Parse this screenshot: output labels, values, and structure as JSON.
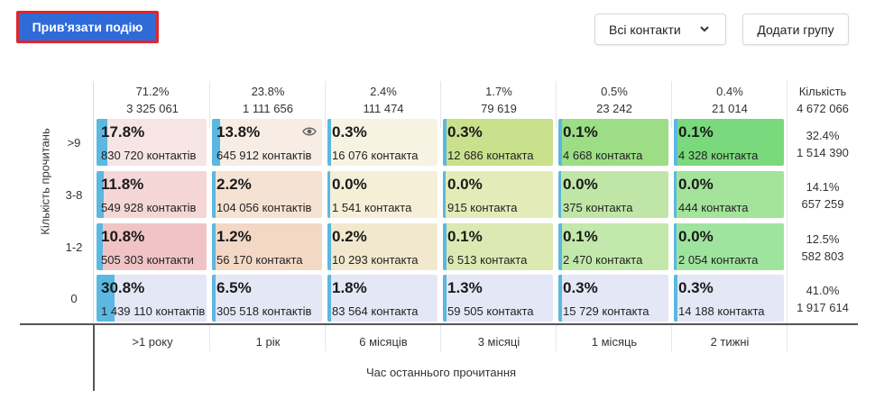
{
  "toolbar": {
    "bind_event_label": "Прив'язати подію",
    "contacts_filter_label": "Всі контакти",
    "add_group_label": "Додати групу"
  },
  "columns": [
    {
      "percent": "71.2%",
      "count": "3 325 061",
      "label": ">1 року"
    },
    {
      "percent": "23.8%",
      "count": "1 111 656",
      "label": "1 рік"
    },
    {
      "percent": "2.4%",
      "count": "111 474",
      "label": "6 місяців"
    },
    {
      "percent": "1.7%",
      "count": "79 619",
      "label": "3 місяці"
    },
    {
      "percent": "0.5%",
      "count": "23 242",
      "label": "1 місяць"
    },
    {
      "percent": "0.4%",
      "count": "21 014",
      "label": "2 тижні"
    }
  ],
  "totals_header": {
    "label": "Кількість",
    "count": "4 672 066"
  },
  "y_axis_title": "Кількість прочитань",
  "x_axis_title": "Час останнього прочитання",
  "rows": [
    {
      "label": ">9",
      "total_percent": "32.4%",
      "total_count": "1 514 390",
      "cells": [
        {
          "percent": "17.8%",
          "contacts": "830 720 контактів",
          "bar": 0.178,
          "color": "#f7e4e4"
        },
        {
          "percent": "13.8%",
          "contacts": "645 912 контактів",
          "bar": 0.138,
          "color": "#f8ede4",
          "eye_icon": "eye-icon"
        },
        {
          "percent": "0.3%",
          "contacts": "16 076 контакта",
          "bar": 0.003,
          "color": "#f7f3e2"
        },
        {
          "percent": "0.3%",
          "contacts": "12 686 контакта",
          "bar": 0.003,
          "color": "#c9e08c"
        },
        {
          "percent": "0.1%",
          "contacts": "4 668 контакта",
          "bar": 0.001,
          "color": "#9ddd86"
        },
        {
          "percent": "0.1%",
          "contacts": "4 328 контакта",
          "bar": 0.001,
          "color": "#7ad97c"
        }
      ]
    },
    {
      "label": "3-8",
      "total_percent": "14.1%",
      "total_count": "657 259",
      "cells": [
        {
          "percent": "11.8%",
          "contacts": "549 928 контактів",
          "bar": 0.118,
          "color": "#f4d6d6"
        },
        {
          "percent": "2.2%",
          "contacts": "104 056 контактів",
          "bar": 0.022,
          "color": "#f6e2d3"
        },
        {
          "percent": "0.0%",
          "contacts": "1 541 контакта",
          "bar": 0.0,
          "color": "#f5efd8"
        },
        {
          "percent": "0.0%",
          "contacts": "915 контакта",
          "bar": 0.0,
          "color": "#e3ecb8"
        },
        {
          "percent": "0.0%",
          "contacts": "375 контакта",
          "bar": 0.0,
          "color": "#bfe6a7"
        },
        {
          "percent": "0.0%",
          "contacts": "444 контакта",
          "bar": 0.0,
          "color": "#a3e39a"
        }
      ]
    },
    {
      "label": "1-2",
      "total_percent": "12.5%",
      "total_count": "582 803",
      "cells": [
        {
          "percent": "10.8%",
          "contacts": "505 303 контакти",
          "bar": 0.108,
          "color": "#f0c4c4"
        },
        {
          "percent": "1.2%",
          "contacts": "56 170 контакта",
          "bar": 0.012,
          "color": "#f3d8c6"
        },
        {
          "percent": "0.2%",
          "contacts": "10 293 контакта",
          "bar": 0.002,
          "color": "#f2e8cd"
        },
        {
          "percent": "0.1%",
          "contacts": "6 513 контакта",
          "bar": 0.001,
          "color": "#dde9b2"
        },
        {
          "percent": "0.1%",
          "contacts": "2 470 контакта",
          "bar": 0.001,
          "color": "#c2e8ab"
        },
        {
          "percent": "0.0%",
          "contacts": "2 054 контакта",
          "bar": 0.0,
          "color": "#9fe49e"
        }
      ]
    },
    {
      "label": "0",
      "total_percent": "41.0%",
      "total_count": "1 917 614",
      "cells": [
        {
          "percent": "30.8%",
          "contacts": "1 439 110 контактів",
          "bar": 0.308,
          "color": "#e4e7f6"
        },
        {
          "percent": "6.5%",
          "contacts": "305 518 контактів",
          "bar": 0.065,
          "color": "#e4e7f6"
        },
        {
          "percent": "1.8%",
          "contacts": "83 564 контакта",
          "bar": 0.018,
          "color": "#e4e7f6"
        },
        {
          "percent": "1.3%",
          "contacts": "59 505 контакта",
          "bar": 0.013,
          "color": "#e4e7f6"
        },
        {
          "percent": "0.3%",
          "contacts": "15 729 контакта",
          "bar": 0.003,
          "color": "#e4e7f6"
        },
        {
          "percent": "0.3%",
          "contacts": "14 188 контакта",
          "bar": 0.003,
          "color": "#e4e7f6"
        }
      ]
    }
  ]
}
